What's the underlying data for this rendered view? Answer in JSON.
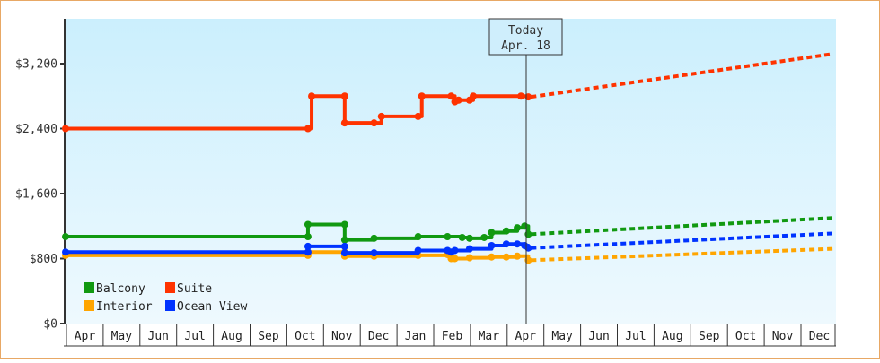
{
  "chart_data": {
    "type": "line",
    "title": "",
    "xlabel": "",
    "ylabel": "",
    "ylim": [
      0,
      3900
    ],
    "yticks": [
      {
        "value": 0,
        "label": "$0"
      },
      {
        "value": 800,
        "label": "$800"
      },
      {
        "value": 1600,
        "label": "$1,600"
      },
      {
        "value": 2400,
        "label": "$2,400"
      },
      {
        "value": 3200,
        "label": "$3,200"
      }
    ],
    "months": [
      "Apr",
      "May",
      "Jun",
      "Jul",
      "Aug",
      "Sep",
      "Oct",
      "Nov",
      "Dec",
      "Jan",
      "Feb",
      "Mar",
      "Apr",
      "May",
      "Jun",
      "Jul",
      "Aug",
      "Sep",
      "Oct",
      "Nov",
      "Dec"
    ],
    "grid": false,
    "legend_position": "bottom-left inside",
    "today_marker": {
      "line1": "Today",
      "line2": "Apr. 18",
      "month_index": 12.55
    },
    "series": [
      {
        "name": "Balcony",
        "color": "#119911",
        "history": [
          [
            0,
            1070
          ],
          [
            6.6,
            1070
          ],
          [
            6.6,
            1220
          ],
          [
            7.6,
            1220
          ],
          [
            7.6,
            1030
          ],
          [
            8.4,
            1050
          ],
          [
            9.6,
            1070
          ],
          [
            10.4,
            1070
          ],
          [
            10.8,
            1060
          ],
          [
            11.0,
            1050
          ],
          [
            11.4,
            1060
          ],
          [
            11.6,
            1120
          ],
          [
            12.0,
            1140
          ],
          [
            12.3,
            1180
          ],
          [
            12.5,
            1200
          ],
          [
            12.6,
            1100
          ]
        ],
        "forecast": [
          [
            12.6,
            1100
          ],
          [
            20.9,
            1300
          ]
        ]
      },
      {
        "name": "Suite",
        "color": "#ff3300",
        "history": [
          [
            0,
            2400
          ],
          [
            6.6,
            2400
          ],
          [
            6.7,
            2800
          ],
          [
            7.6,
            2800
          ],
          [
            7.6,
            2470
          ],
          [
            8.4,
            2470
          ],
          [
            8.6,
            2550
          ],
          [
            9.6,
            2550
          ],
          [
            9.7,
            2800
          ],
          [
            10.5,
            2800
          ],
          [
            10.6,
            2730
          ],
          [
            10.7,
            2750
          ],
          [
            11.0,
            2750
          ],
          [
            11.1,
            2800
          ],
          [
            12.4,
            2800
          ],
          [
            12.6,
            2790
          ]
        ],
        "forecast": [
          [
            12.6,
            2790
          ],
          [
            20.9,
            3320
          ]
        ]
      },
      {
        "name": "Interior",
        "color": "#ffa500",
        "history": [
          [
            0,
            840
          ],
          [
            6.6,
            840
          ],
          [
            6.6,
            880
          ],
          [
            7.6,
            880
          ],
          [
            7.6,
            830
          ],
          [
            8.4,
            830
          ],
          [
            9.6,
            840
          ],
          [
            10.4,
            850
          ],
          [
            10.5,
            800
          ],
          [
            10.6,
            800
          ],
          [
            11.0,
            810
          ],
          [
            11.6,
            820
          ],
          [
            12.0,
            820
          ],
          [
            12.3,
            830
          ],
          [
            12.6,
            780
          ]
        ],
        "forecast": [
          [
            12.6,
            780
          ],
          [
            20.9,
            920
          ]
        ]
      },
      {
        "name": "Ocean View",
        "color": "#0033ff",
        "history": [
          [
            0,
            880
          ],
          [
            6.6,
            880
          ],
          [
            6.6,
            950
          ],
          [
            7.6,
            950
          ],
          [
            7.6,
            870
          ],
          [
            8.4,
            870
          ],
          [
            9.6,
            900
          ],
          [
            10.4,
            900
          ],
          [
            10.5,
            880
          ],
          [
            10.6,
            900
          ],
          [
            11.0,
            920
          ],
          [
            11.6,
            960
          ],
          [
            12.0,
            980
          ],
          [
            12.3,
            980
          ],
          [
            12.5,
            960
          ],
          [
            12.6,
            930
          ]
        ],
        "forecast": [
          [
            12.6,
            930
          ],
          [
            20.9,
            1110
          ]
        ]
      }
    ]
  },
  "legend": [
    {
      "label": "Balcony",
      "color": "#119911"
    },
    {
      "label": "Suite",
      "color": "#ff3300"
    },
    {
      "label": "Interior",
      "color": "#ffa500"
    },
    {
      "label": "Ocean View",
      "color": "#0033ff"
    }
  ]
}
